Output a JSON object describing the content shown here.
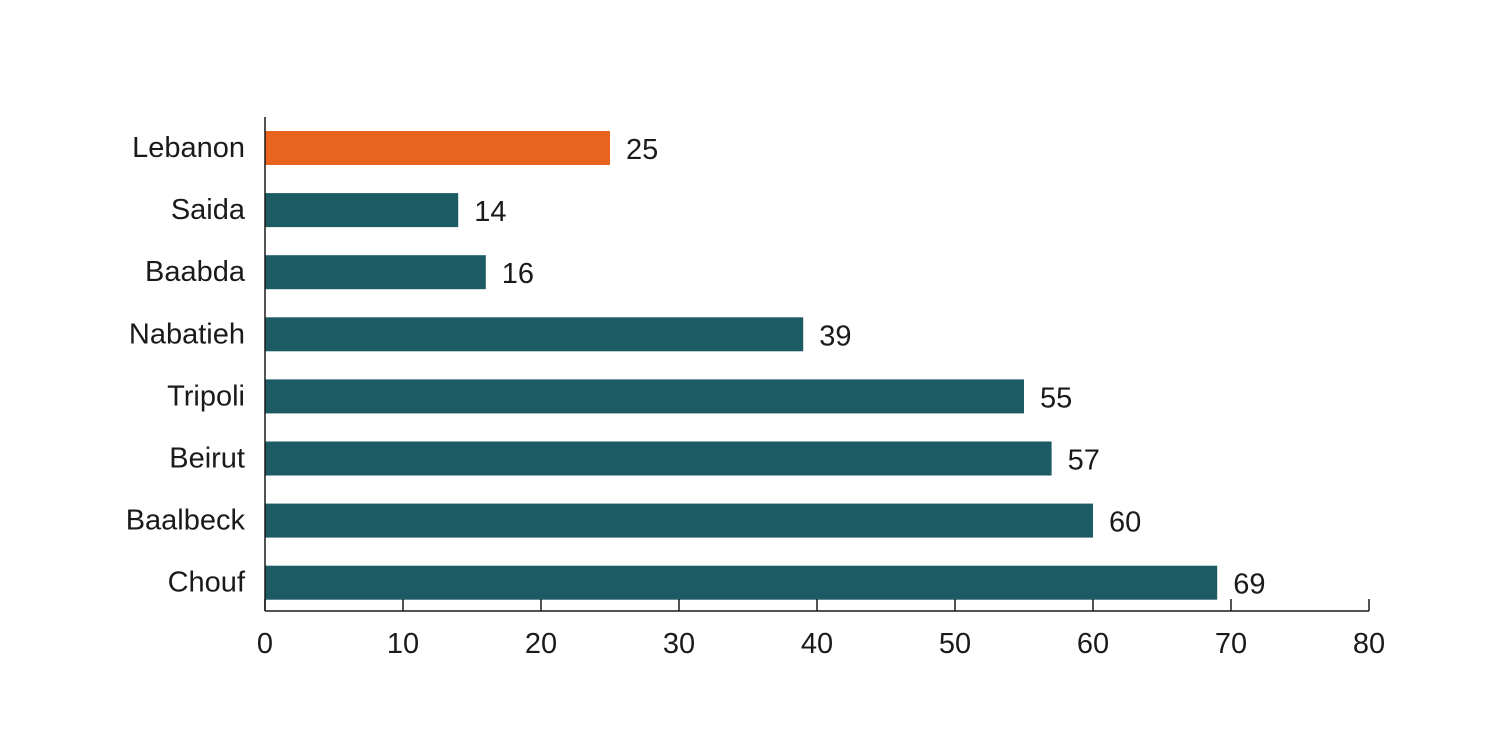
{
  "chart_data": {
    "type": "bar",
    "orientation": "horizontal",
    "categories": [
      "Lebanon",
      "Saida",
      "Baabda",
      "Nabatieh",
      "Tripoli",
      "Beirut",
      "Baalbeck",
      "Chouf"
    ],
    "values": [
      25,
      14,
      16,
      39,
      55,
      57,
      60,
      69
    ],
    "title": "",
    "xlabel": "",
    "ylabel": "",
    "xlim": [
      0,
      80
    ],
    "xticks": [
      0,
      10,
      20,
      30,
      40,
      50,
      60,
      70,
      80
    ],
    "grid": false,
    "legend": "none",
    "data_labels": true,
    "colors": {
      "highlight": "#E8641E",
      "default": "#1C5A64"
    },
    "highlight_category": "Lebanon"
  }
}
